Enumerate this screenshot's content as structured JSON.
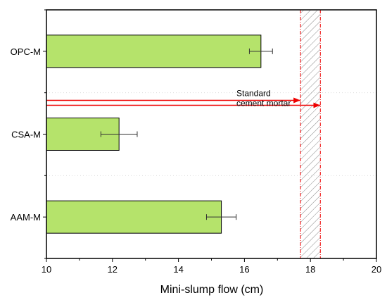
{
  "chart_data": {
    "type": "bar",
    "orientation": "horizontal",
    "categories": [
      "OPC-M",
      "CSA-M",
      "AAM-M"
    ],
    "values": [
      16.5,
      12.2,
      15.3
    ],
    "errors": [
      0.35,
      0.55,
      0.45
    ],
    "title": "",
    "xlabel": "Mini-slump flow (cm)",
    "ylabel": "",
    "xlim": [
      10,
      20
    ],
    "xticks": [
      "10",
      "12",
      "14",
      "16",
      "18",
      "20"
    ],
    "grid": false,
    "bar_color": "#b5e36b",
    "reference": {
      "label_lines": [
        "Standard",
        "cement mortar"
      ],
      "range": [
        17.7,
        18.3
      ],
      "color": "#ee0000"
    }
  }
}
